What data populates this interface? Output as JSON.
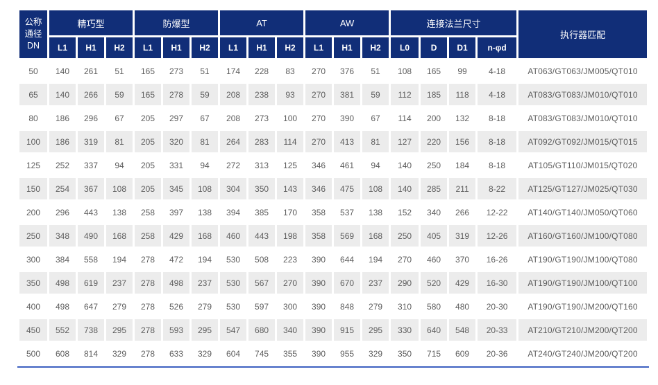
{
  "colors": {
    "header_bg": "#112e78",
    "header_text": "#ffffff",
    "stripe_bg": "#ececec",
    "cell_text": "#5d5d5d",
    "bottom_rule": "#3b5fc0"
  },
  "table": {
    "corner_header": "公称\n通径\nDN",
    "groups": [
      {
        "label": "精巧型",
        "span": 3
      },
      {
        "label": "防爆型",
        "span": 3
      },
      {
        "label": "AT",
        "span": 3
      },
      {
        "label": "AW",
        "span": 3
      },
      {
        "label": "连接法兰尺寸",
        "span": 4
      }
    ],
    "actuator_header": "执行器匹配",
    "sub_headers": [
      "L1",
      "H1",
      "H2",
      "L1",
      "H1",
      "H2",
      "L1",
      "H1",
      "H2",
      "L1",
      "H1",
      "H2",
      "L0",
      "D",
      "D1",
      "n-φd"
    ],
    "rows": [
      [
        "50",
        "140",
        "261",
        "51",
        "165",
        "273",
        "51",
        "174",
        "228",
        "83",
        "270",
        "376",
        "51",
        "108",
        "165",
        "99",
        "4-18",
        "AT063/GT063/JM005/QT010"
      ],
      [
        "65",
        "140",
        "266",
        "59",
        "165",
        "278",
        "59",
        "208",
        "238",
        "93",
        "270",
        "381",
        "59",
        "112",
        "185",
        "118",
        "4-18",
        "AT083/GT083/JM010/QT010"
      ],
      [
        "80",
        "186",
        "296",
        "67",
        "205",
        "297",
        "67",
        "208",
        "273",
        "100",
        "270",
        "390",
        "67",
        "114",
        "200",
        "132",
        "8-18",
        "AT083/GT083/JM010/QT010"
      ],
      [
        "100",
        "186",
        "319",
        "81",
        "205",
        "320",
        "81",
        "264",
        "283",
        "114",
        "270",
        "413",
        "81",
        "127",
        "220",
        "156",
        "8-18",
        "AT092/GT092/JM015/QT015"
      ],
      [
        "125",
        "252",
        "337",
        "94",
        "205",
        "331",
        "94",
        "272",
        "313",
        "125",
        "346",
        "461",
        "94",
        "140",
        "250",
        "184",
        "8-18",
        "AT105/GT110/JM015/QT020"
      ],
      [
        "150",
        "254",
        "367",
        "108",
        "205",
        "345",
        "108",
        "304",
        "350",
        "143",
        "346",
        "475",
        "108",
        "140",
        "285",
        "211",
        "8-22",
        "AT125/GT127/JM025/QT030"
      ],
      [
        "200",
        "296",
        "443",
        "138",
        "258",
        "397",
        "138",
        "394",
        "385",
        "170",
        "358",
        "537",
        "138",
        "152",
        "340",
        "266",
        "12-22",
        "AT140/GT140/JM050/QT060"
      ],
      [
        "250",
        "348",
        "490",
        "168",
        "258",
        "429",
        "168",
        "460",
        "443",
        "198",
        "358",
        "569",
        "168",
        "250",
        "405",
        "319",
        "12-26",
        "AT160/GT160/JM100/QT080"
      ],
      [
        "300",
        "384",
        "558",
        "194",
        "278",
        "472",
        "194",
        "530",
        "508",
        "223",
        "390",
        "644",
        "194",
        "270",
        "460",
        "370",
        "16-26",
        "AT190/GT190/JM100/QT080"
      ],
      [
        "350",
        "498",
        "619",
        "237",
        "278",
        "498",
        "237",
        "530",
        "567",
        "270",
        "390",
        "670",
        "237",
        "290",
        "520",
        "429",
        "16-30",
        "AT190/GT190/JM100/QT100"
      ],
      [
        "400",
        "498",
        "647",
        "279",
        "278",
        "526",
        "279",
        "530",
        "597",
        "300",
        "390",
        "848",
        "279",
        "310",
        "580",
        "480",
        "20-30",
        "AT190/GT190/JM200/QT160"
      ],
      [
        "450",
        "552",
        "738",
        "295",
        "278",
        "593",
        "295",
        "547",
        "680",
        "340",
        "390",
        "915",
        "295",
        "330",
        "640",
        "548",
        "20-33",
        "AT210/GT210/JM200/QT200"
      ],
      [
        "500",
        "608",
        "814",
        "329",
        "278",
        "633",
        "329",
        "604",
        "745",
        "355",
        "390",
        "955",
        "329",
        "350",
        "715",
        "609",
        "20-36",
        "AT240/GT240/JM200/QT200"
      ]
    ]
  }
}
